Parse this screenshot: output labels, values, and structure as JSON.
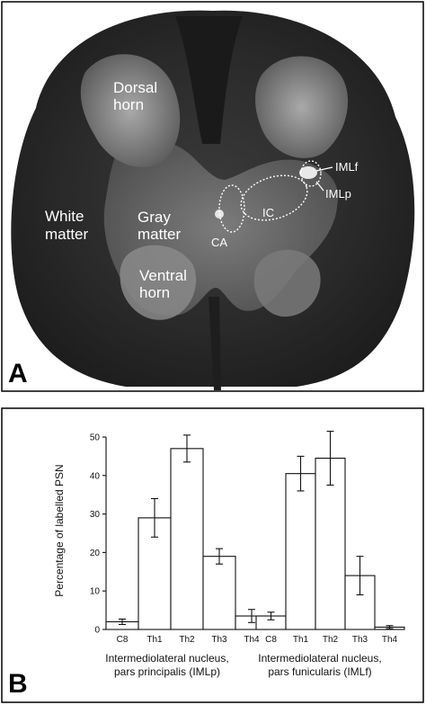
{
  "panel_a": {
    "letter": "A",
    "labels": {
      "dorsal_1": "Dorsal",
      "dorsal_2": "horn",
      "white_1": "White",
      "white_2": "matter",
      "gray_1": "Gray",
      "gray_2": "matter",
      "ventral_1": "Ventral",
      "ventral_2": "horn",
      "ca": "CA",
      "ic": "IC",
      "imlf": "IMLf",
      "imlp": "IMLp"
    }
  },
  "panel_b": {
    "letter": "B",
    "ylabel": "Percentage of labelled PSN",
    "captions": {
      "left_1": "Intermediolateral nucleus,",
      "left_2": "pars principalis (IMLp)",
      "right_1": "Intermediolateral nucleus,",
      "right_2": "pars funicularis (IMLf)"
    }
  },
  "chart_data": [
    {
      "type": "bar",
      "title": "",
      "categories": [
        "C8",
        "Th1",
        "Th2",
        "Th3",
        "Th4"
      ],
      "values": [
        2,
        29,
        47,
        19,
        3.5
      ],
      "errors": [
        0.7,
        5,
        3.5,
        2,
        1.7
      ],
      "xlabel": "Intermediolateral nucleus, pars principalis (IMLp)",
      "ylabel": "Percentage of labelled PSN",
      "ylim": [
        0,
        50
      ],
      "yticks": [
        0,
        10,
        20,
        30,
        40,
        50
      ]
    },
    {
      "type": "bar",
      "title": "",
      "categories": [
        "C8",
        "Th1",
        "Th2",
        "Th3",
        "Th4"
      ],
      "values": [
        3.5,
        40.5,
        44.5,
        14,
        0.6
      ],
      "errors": [
        1,
        4.5,
        7,
        5,
        0.4
      ],
      "xlabel": "Intermediolateral nucleus, pars funicularis (IMLf)",
      "ylim": [
        0,
        50
      ]
    }
  ]
}
